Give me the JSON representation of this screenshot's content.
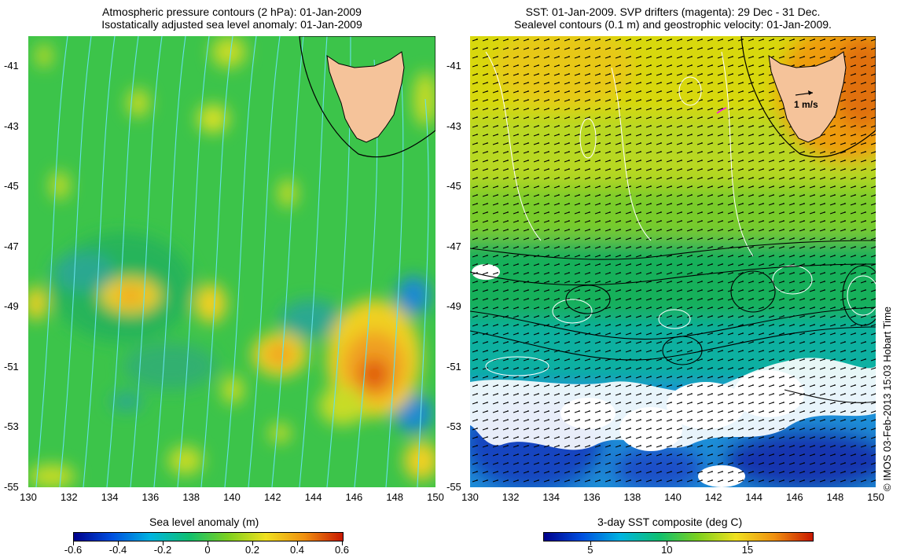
{
  "left_panel": {
    "title_line1": "Atmospheric pressure contours (2 hPa): 01-Jan-2009",
    "title_line2": "Isostatically adjusted sea level anomaly: 01-Jan-2009",
    "colorbar_title": "Sea level anomaly (m)",
    "colorbar_ticks": [
      "-0.6",
      "-0.4",
      "-0.2",
      "0",
      "0.2",
      "0.4",
      "0.6"
    ],
    "colors": {
      "low": "#00008b",
      "mid": "#22aa44",
      "high": "#cc1100",
      "contour": "#66e0e8",
      "land": "#f5c39a"
    }
  },
  "right_panel": {
    "title_line1": "SST: 01-Jan-2009. SVP drifters (magenta): 29 Dec - 31 Dec.",
    "title_line2": "Sealevel contours (0.1 m) and geostrophic velocity: 01-Jan-2009.",
    "colorbar_title": "3-day SST composite (deg C)",
    "colorbar_ticks": [
      "5",
      "10",
      "15"
    ],
    "scale_arrow_label": "1 m/s",
    "colors": {
      "cold": "#0a1e9e",
      "mid": "#00c060",
      "warm": "#ee8800",
      "land": "#f5c39a",
      "drifter": "#ff00ff"
    }
  },
  "axes": {
    "y_ticks": [
      "-41",
      "-43",
      "-45",
      "-47",
      "-49",
      "-51",
      "-53",
      "-55"
    ],
    "x_ticks": [
      "130",
      "132",
      "134",
      "136",
      "138",
      "140",
      "142",
      "144",
      "146",
      "148",
      "150"
    ]
  },
  "credit": "© IMOS 03-Feb-2013 15:03 Hobart Time"
}
